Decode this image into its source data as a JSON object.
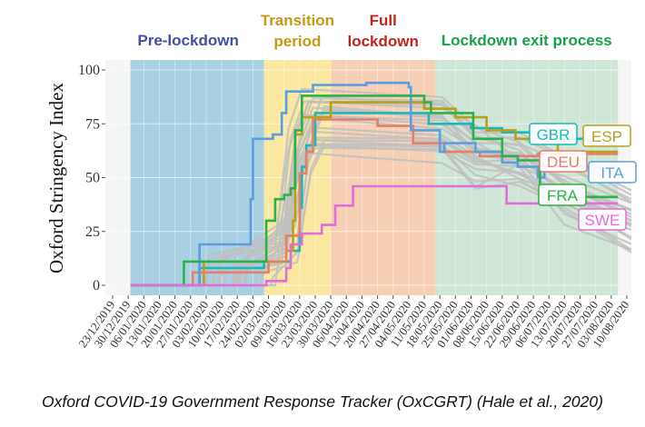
{
  "chart_data": {
    "type": "line",
    "ylabel": "Oxford Stringency Index",
    "ylim": [
      0,
      100
    ],
    "y_ticks": [
      0,
      25,
      50,
      75,
      100
    ],
    "x_tick_labels": [
      "23/12/2019",
      "30/12/2019",
      "06/01/2020",
      "13/01/2020",
      "20/01/2020",
      "27/01/2020",
      "03/02/2020",
      "10/02/2020",
      "17/02/2020",
      "24/02/2020",
      "02/03/2020",
      "09/03/2020",
      "16/03/2020",
      "23/03/2020",
      "30/03/2020",
      "06/04/2020",
      "13/04/2020",
      "20/04/2020",
      "27/04/2020",
      "04/05/2020",
      "11/05/2020",
      "18/05/2020",
      "25/05/2020",
      "01/06/2020",
      "08/06/2020",
      "15/06/2020",
      "22/06/2020",
      "29/06/2020",
      "06/07/2020",
      "13/07/2020",
      "20/07/2020",
      "27/07/2020",
      "03/08/2020",
      "10/08/2020"
    ],
    "x_range": [
      "2019-12-23",
      "2020-08-10"
    ],
    "grid": true,
    "phases": [
      {
        "label": "Pre-lockdown",
        "start": "2019-12-31",
        "end": "2020-02-29",
        "color": "#a9d0e2",
        "text_color": "#3f51a6"
      },
      {
        "label_lines": [
          "Transition",
          "period"
        ],
        "start": "2020-02-29",
        "end": "2020-03-30",
        "color": "#fbe8a0",
        "text_color": "#c59a12"
      },
      {
        "label_lines": [
          "Full",
          "lockdown"
        ],
        "start": "2020-03-30",
        "end": "2020-05-16",
        "color": "#f7cfb5",
        "text_color": "#c0251c"
      },
      {
        "label": "Lockdown exit process",
        "start": "2020-05-16",
        "end": "2020-08-06",
        "color": "#cfe6d6",
        "text_color": "#17a04c"
      }
    ],
    "background_series_color": "#bfbfbf",
    "series": [
      {
        "name": "GBR",
        "color": "#1cb7b9",
        "label_color": "#1cb7b9",
        "points": [
          [
            "2019-12-31",
            0
          ],
          [
            "2020-01-30",
            0
          ],
          [
            "2020-01-31",
            8
          ],
          [
            "2020-02-29",
            11
          ],
          [
            "2020-03-02",
            11
          ],
          [
            "2020-03-12",
            16
          ],
          [
            "2020-03-16",
            36
          ],
          [
            "2020-03-17",
            55
          ],
          [
            "2020-03-19",
            65
          ],
          [
            "2020-03-23",
            80
          ],
          [
            "2020-03-24",
            80
          ],
          [
            "2020-05-11",
            80
          ],
          [
            "2020-05-13",
            75
          ],
          [
            "2020-06-01",
            73
          ],
          [
            "2020-06-15",
            71
          ],
          [
            "2020-07-04",
            68
          ],
          [
            "2020-07-24",
            65
          ],
          [
            "2020-08-06",
            65
          ]
        ]
      },
      {
        "name": "ESP",
        "color": "#b8a018",
        "label_color": "#b8a018",
        "points": [
          [
            "2019-12-31",
            0
          ],
          [
            "2020-02-01",
            0
          ],
          [
            "2020-02-02",
            11
          ],
          [
            "2020-03-09",
            11
          ],
          [
            "2020-03-10",
            16
          ],
          [
            "2020-03-13",
            30
          ],
          [
            "2020-03-14",
            70
          ],
          [
            "2020-03-17",
            78
          ],
          [
            "2020-03-30",
            85
          ],
          [
            "2020-04-13",
            85
          ],
          [
            "2020-05-11",
            82
          ],
          [
            "2020-05-19",
            82
          ],
          [
            "2020-05-25",
            78
          ],
          [
            "2020-06-08",
            72
          ],
          [
            "2020-06-21",
            68
          ],
          [
            "2020-07-10",
            62
          ],
          [
            "2020-08-06",
            62
          ]
        ]
      },
      {
        "name": "DEU",
        "color": "#e47f6a",
        "label_color": "#e47f6a",
        "points": [
          [
            "2019-12-31",
            0
          ],
          [
            "2020-01-27",
            0
          ],
          [
            "2020-01-28",
            6
          ],
          [
            "2020-02-26",
            6
          ],
          [
            "2020-03-02",
            11
          ],
          [
            "2020-03-10",
            23
          ],
          [
            "2020-03-16",
            52
          ],
          [
            "2020-03-19",
            62
          ],
          [
            "2020-03-22",
            77
          ],
          [
            "2020-04-20",
            74
          ],
          [
            "2020-05-06",
            66
          ],
          [
            "2020-05-20",
            62
          ],
          [
            "2020-06-05",
            60
          ],
          [
            "2020-06-30",
            60
          ],
          [
            "2020-07-01",
            61
          ],
          [
            "2020-08-06",
            61
          ]
        ]
      },
      {
        "name": "ITA",
        "color": "#5b9ee0",
        "label_color": "#5b9ee0",
        "points": [
          [
            "2019-12-31",
            0
          ],
          [
            "2020-01-30",
            0
          ],
          [
            "2020-01-31",
            19
          ],
          [
            "2020-02-21",
            19
          ],
          [
            "2020-02-23",
            40
          ],
          [
            "2020-02-24",
            68
          ],
          [
            "2020-03-04",
            70
          ],
          [
            "2020-03-08",
            80
          ],
          [
            "2020-03-10",
            90
          ],
          [
            "2020-03-22",
            93
          ],
          [
            "2020-04-13",
            93
          ],
          [
            "2020-04-15",
            94
          ],
          [
            "2020-05-04",
            92
          ],
          [
            "2020-05-05",
            72
          ],
          [
            "2020-05-18",
            62
          ],
          [
            "2020-05-20",
            66
          ],
          [
            "2020-06-03",
            62
          ],
          [
            "2020-06-15",
            57
          ],
          [
            "2020-06-22",
            55
          ],
          [
            "2020-06-30",
            55
          ],
          [
            "2020-07-01",
            50
          ],
          [
            "2020-07-04",
            55
          ],
          [
            "2020-08-06",
            55
          ]
        ]
      },
      {
        "name": "FRA",
        "color": "#2bb14a",
        "label_color": "#2bb14a",
        "points": [
          [
            "2019-12-31",
            0
          ],
          [
            "2020-01-23",
            0
          ],
          [
            "2020-01-24",
            11
          ],
          [
            "2020-02-28",
            11
          ],
          [
            "2020-03-01",
            30
          ],
          [
            "2020-03-05",
            40
          ],
          [
            "2020-03-09",
            42
          ],
          [
            "2020-03-12",
            45
          ],
          [
            "2020-03-14",
            72
          ],
          [
            "2020-03-17",
            88
          ],
          [
            "2020-04-16",
            88
          ],
          [
            "2020-05-11",
            85
          ],
          [
            "2020-05-14",
            80
          ],
          [
            "2020-06-02",
            68
          ],
          [
            "2020-06-15",
            60
          ],
          [
            "2020-06-22",
            58
          ],
          [
            "2020-07-02",
            41
          ],
          [
            "2020-07-20",
            41
          ],
          [
            "2020-08-06",
            41
          ]
        ]
      },
      {
        "name": "SWE",
        "color": "#e16ed8",
        "label_color": "#e16ed8",
        "points": [
          [
            "2019-12-31",
            0
          ],
          [
            "2020-02-28",
            0
          ],
          [
            "2020-03-01",
            2
          ],
          [
            "2020-03-10",
            8
          ],
          [
            "2020-03-12",
            19
          ],
          [
            "2020-03-17",
            24
          ],
          [
            "2020-03-26",
            28
          ],
          [
            "2020-04-01",
            37
          ],
          [
            "2020-04-09",
            46
          ],
          [
            "2020-06-15",
            46
          ],
          [
            "2020-06-17",
            38
          ],
          [
            "2020-07-01",
            38
          ],
          [
            "2020-07-28",
            38
          ],
          [
            "2020-08-06",
            38
          ]
        ]
      }
    ]
  },
  "caption": "Oxford COVID-19 Government Response Tracker (OxCGRT) (Hale et al., 2020)"
}
